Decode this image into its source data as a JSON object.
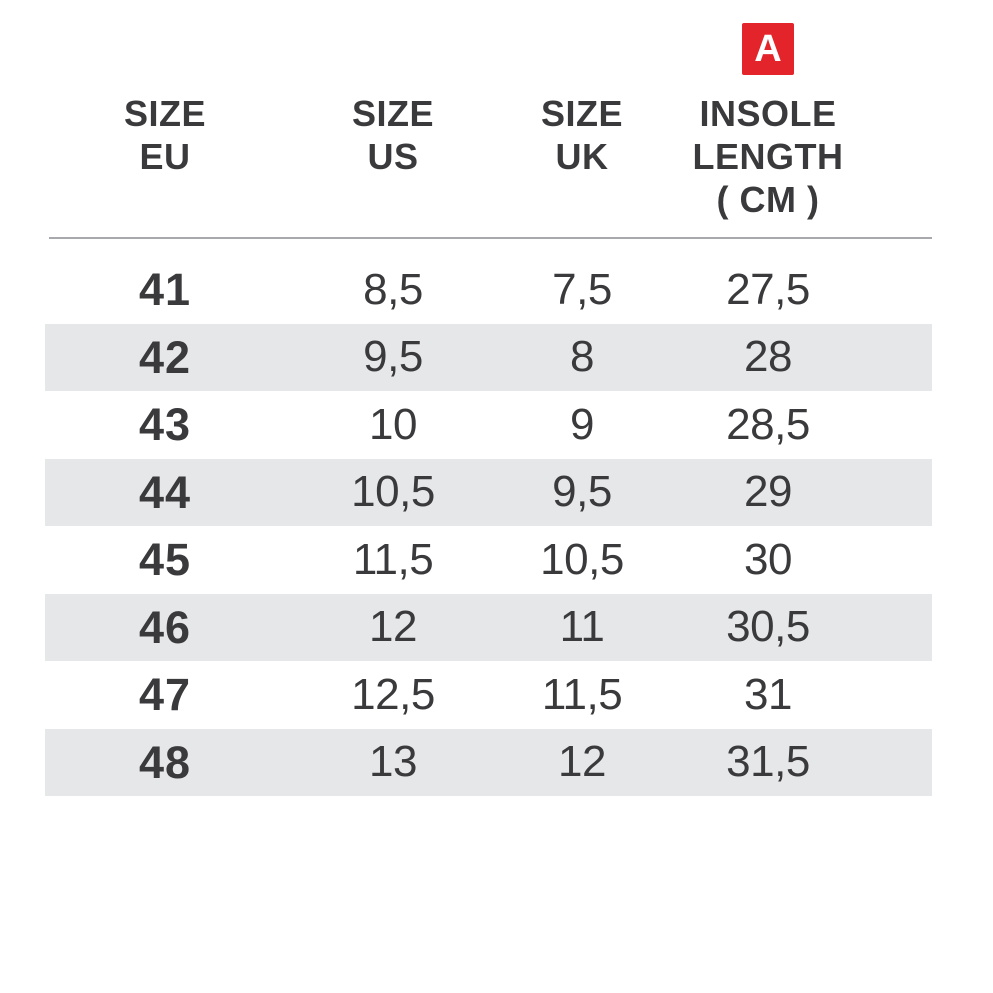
{
  "badge": {
    "label": "A"
  },
  "header": {
    "col1_lines": [
      "SIZE",
      "EU"
    ],
    "col2_lines": [
      "SIZE",
      "US"
    ],
    "col3_lines": [
      "SIZE",
      "UK"
    ],
    "col4_lines": [
      "INSOLE",
      "LENGTH",
      "( CM )"
    ]
  },
  "rows": [
    {
      "eu": "41",
      "us": "8,5",
      "uk": "7,5",
      "insole": "27,5"
    },
    {
      "eu": "42",
      "us": "9,5",
      "uk": "8",
      "insole": "28"
    },
    {
      "eu": "43",
      "us": "10",
      "uk": "9",
      "insole": "28,5"
    },
    {
      "eu": "44",
      "us": "10,5",
      "uk": "9,5",
      "insole": "29"
    },
    {
      "eu": "45",
      "us": "11,5",
      "uk": "10,5",
      "insole": "30"
    },
    {
      "eu": "46",
      "us": "12",
      "uk": "11",
      "insole": "30,5"
    },
    {
      "eu": "47",
      "us": "12,5",
      "uk": "11,5",
      "insole": "31"
    },
    {
      "eu": "48",
      "us": "13",
      "uk": "12",
      "insole": "31,5"
    }
  ],
  "colors": {
    "accent_red": "#E3242B",
    "text_dark": "#3A3A3C",
    "stripe_grey": "#E6E7E8",
    "rule_grey": "#A7A9AC",
    "background": "#FFFFFF",
    "badge_text": "#FFFFFF"
  },
  "chart_data": {
    "type": "table",
    "title": "Shoe size conversion chart",
    "columns": [
      "SIZE EU",
      "SIZE US",
      "SIZE UK",
      "INSOLE LENGTH ( CM )"
    ],
    "column_marker": {
      "column": "INSOLE LENGTH ( CM )",
      "label": "A"
    },
    "rows": [
      [
        "41",
        "8,5",
        "7,5",
        "27,5"
      ],
      [
        "42",
        "9,5",
        "8",
        "28"
      ],
      [
        "43",
        "10",
        "9",
        "28,5"
      ],
      [
        "44",
        "10,5",
        "9,5",
        "29"
      ],
      [
        "45",
        "11,5",
        "10,5",
        "30"
      ],
      [
        "46",
        "12",
        "11",
        "30,5"
      ],
      [
        "47",
        "12,5",
        "11,5",
        "31"
      ],
      [
        "48",
        "13",
        "12",
        "31,5"
      ]
    ],
    "layout": {
      "striped_rows": "even rows grey",
      "header_divider": true,
      "grid": "off"
    }
  }
}
